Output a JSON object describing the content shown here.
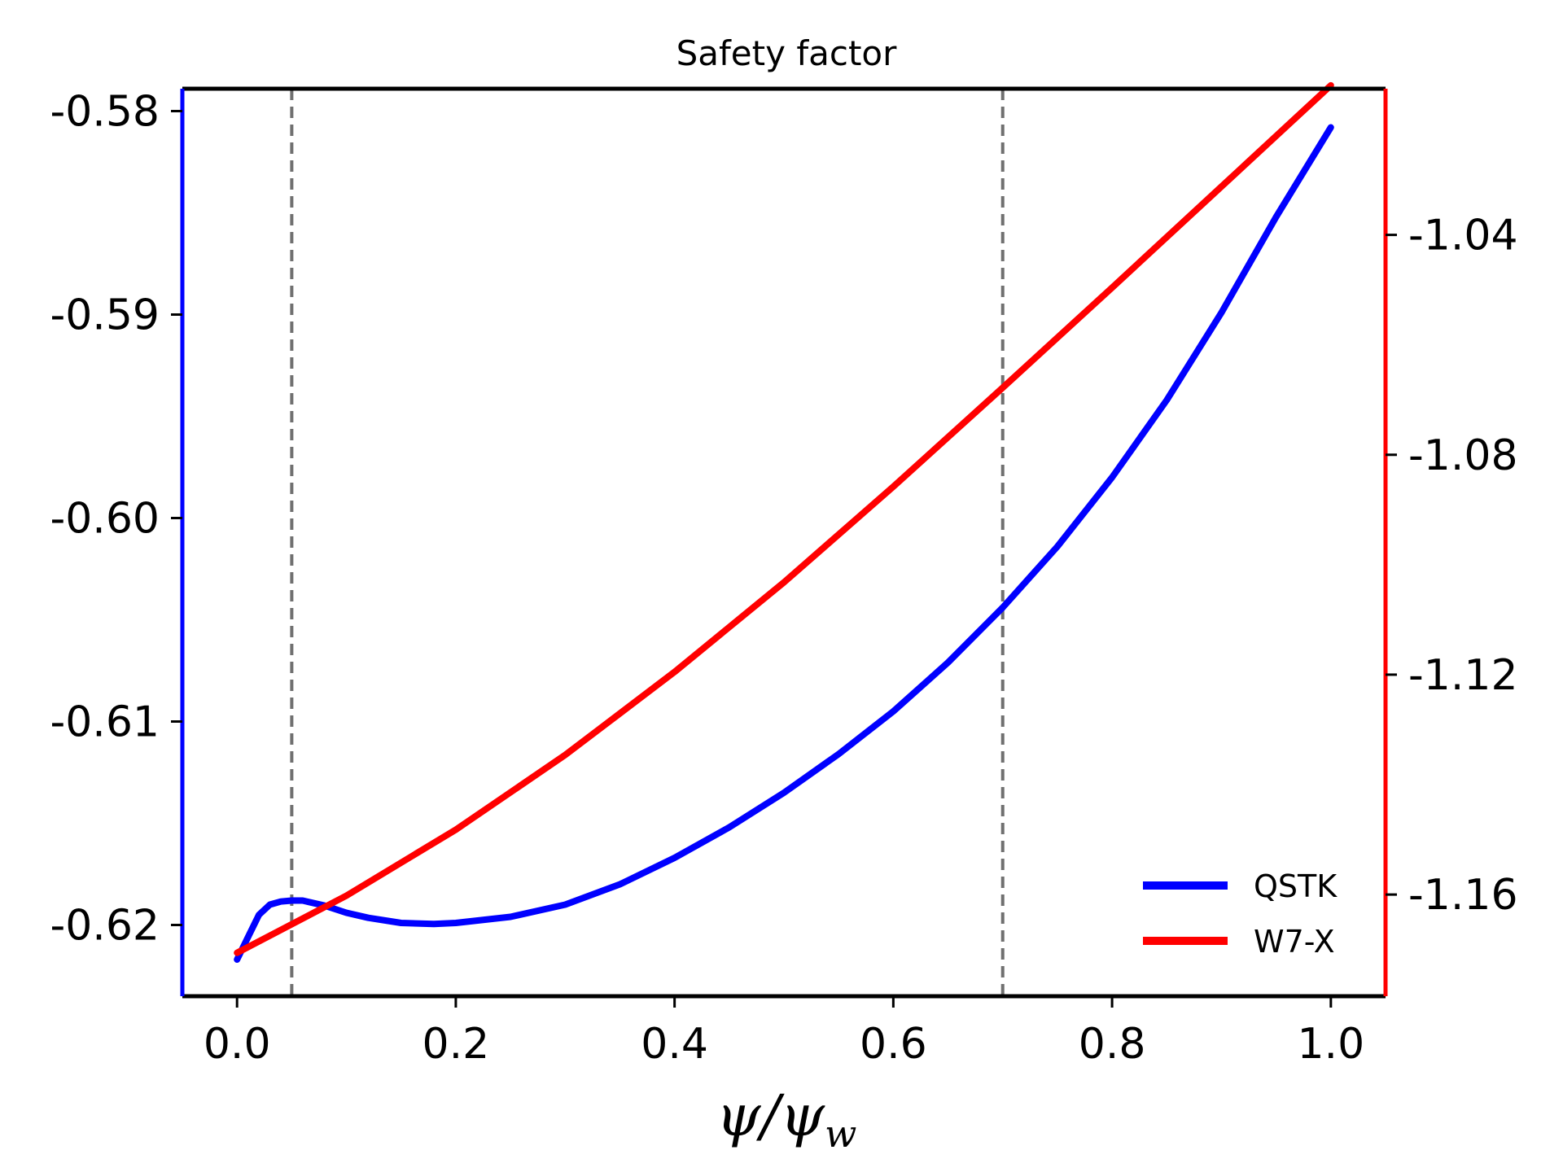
{
  "chart_data": {
    "type": "line",
    "title": "Safety factor",
    "xlabel": "ψ/ψw",
    "xlabel_main": "ψ/ψ",
    "xlabel_sub": "w",
    "xlim": [
      -0.05,
      1.05
    ],
    "x_ticks": [
      0.0,
      0.2,
      0.4,
      0.6,
      0.8,
      1.0
    ],
    "x_tick_labels": [
      "0.0",
      "0.2",
      "0.4",
      "0.6",
      "0.8",
      "1.0"
    ],
    "y_left": {
      "lim": [
        -0.6235,
        -0.5789
      ],
      "ticks": [
        -0.58,
        -0.59,
        -0.6,
        -0.61,
        -0.62
      ],
      "tick_labels": [
        "-0.58",
        "-0.59",
        "-0.60",
        "-0.61",
        "-0.62"
      ],
      "color": "#0000ff"
    },
    "y_right": {
      "lim": [
        -1.17849,
        -1.01341
      ],
      "ticks": [
        -1.04,
        -1.08,
        -1.12,
        -1.16
      ],
      "tick_labels": [
        "-1.04",
        "-1.08",
        "-1.12",
        "-1.16"
      ],
      "color": "#ff0000"
    },
    "vlines": [
      0.05,
      0.7
    ],
    "vline_color": "#707070",
    "series": [
      {
        "name": "QSTK",
        "axis": "left",
        "color": "#0000ff",
        "x": [
          0.0,
          0.01,
          0.02,
          0.03,
          0.04,
          0.05,
          0.06,
          0.08,
          0.1,
          0.12,
          0.15,
          0.18,
          0.2,
          0.25,
          0.3,
          0.35,
          0.4,
          0.45,
          0.5,
          0.55,
          0.6,
          0.65,
          0.7,
          0.75,
          0.8,
          0.85,
          0.9,
          0.95,
          1.0
        ],
        "values": [
          -0.6217,
          -0.6206,
          -0.6195,
          -0.619,
          -0.61885,
          -0.6188,
          -0.6188,
          -0.61905,
          -0.6194,
          -0.61965,
          -0.6199,
          -0.61995,
          -0.6199,
          -0.6196,
          -0.619,
          -0.618,
          -0.6167,
          -0.6152,
          -0.6135,
          -0.6116,
          -0.6095,
          -0.6071,
          -0.6044,
          -0.6014,
          -0.598,
          -0.5942,
          -0.5899,
          -0.5852,
          -0.5808
        ]
      },
      {
        "name": "W7-X",
        "axis": "right",
        "color": "#ff0000",
        "x": [
          0.0,
          0.1,
          0.2,
          0.3,
          0.4,
          0.5,
          0.6,
          0.7,
          0.8,
          0.9,
          1.0
        ],
        "values": [
          -1.1706,
          -1.1602,
          -1.1482,
          -1.1346,
          -1.1195,
          -1.1032,
          -1.0858,
          -1.0678,
          -1.0496,
          -1.0312,
          -1.0128
        ]
      }
    ],
    "legend_position": "lower-right"
  }
}
